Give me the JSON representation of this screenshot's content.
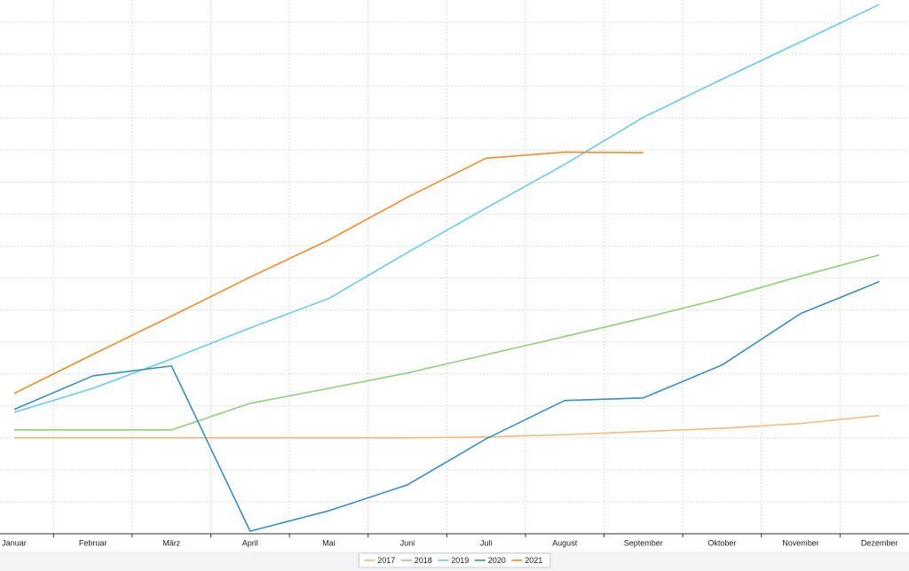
{
  "chart_data": {
    "type": "line",
    "categories": [
      "Januar",
      "Februar",
      "März",
      "April",
      "Mai",
      "Juni",
      "Juli",
      "August",
      "September",
      "Oktober",
      "November",
      "Dezember"
    ],
    "series": [
      {
        "name": "2017",
        "color": "#f5b97a",
        "values": [
          3.0,
          3.0,
          3.0,
          3.0,
          3.0,
          3.0,
          3.03,
          3.1,
          3.2,
          3.3,
          3.45,
          3.7
        ]
      },
      {
        "name": "2018",
        "color": "#8fd17a",
        "values": [
          3.25,
          3.25,
          3.25,
          4.08,
          4.55,
          5.03,
          5.6,
          6.17,
          6.75,
          7.36,
          8.06,
          8.72
        ]
      },
      {
        "name": "2019",
        "color": "#6cc9ee",
        "values": [
          3.8,
          4.55,
          5.47,
          6.44,
          7.36,
          8.8,
          10.19,
          11.56,
          13.03,
          14.22,
          15.39,
          16.56
        ]
      },
      {
        "name": "2020",
        "color": "#3a8fc0",
        "values": [
          3.89,
          4.94,
          5.25,
          0.08,
          0.72,
          1.53,
          2.97,
          4.17,
          4.25,
          5.28,
          6.89,
          7.89
        ]
      },
      {
        "name": "2021",
        "color": "#f08c2a",
        "values": [
          4.39,
          5.61,
          6.81,
          8.03,
          9.19,
          10.53,
          11.75,
          11.94,
          11.92,
          null,
          null,
          null
        ]
      }
    ],
    "ylim": [
      0,
      16.7
    ],
    "yticks": [
      1,
      2,
      3,
      4,
      5,
      6,
      7,
      8,
      9,
      10,
      11,
      12,
      13,
      14,
      15,
      16
    ],
    "grid": true,
    "legend": "bottom"
  }
}
